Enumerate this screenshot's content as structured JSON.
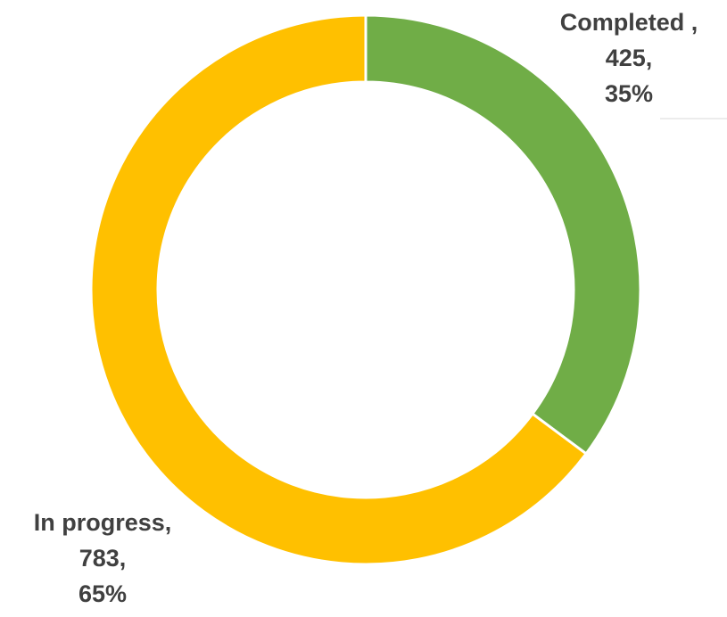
{
  "chart_data": {
    "type": "donut",
    "categories": [
      "Completed ,",
      "In progress,"
    ],
    "values": [
      425,
      783
    ],
    "value_labels": [
      "425,",
      "783,"
    ],
    "percent_labels": [
      "35%",
      "65%"
    ],
    "colors": [
      "#70ad47",
      "#ffc000"
    ]
  }
}
